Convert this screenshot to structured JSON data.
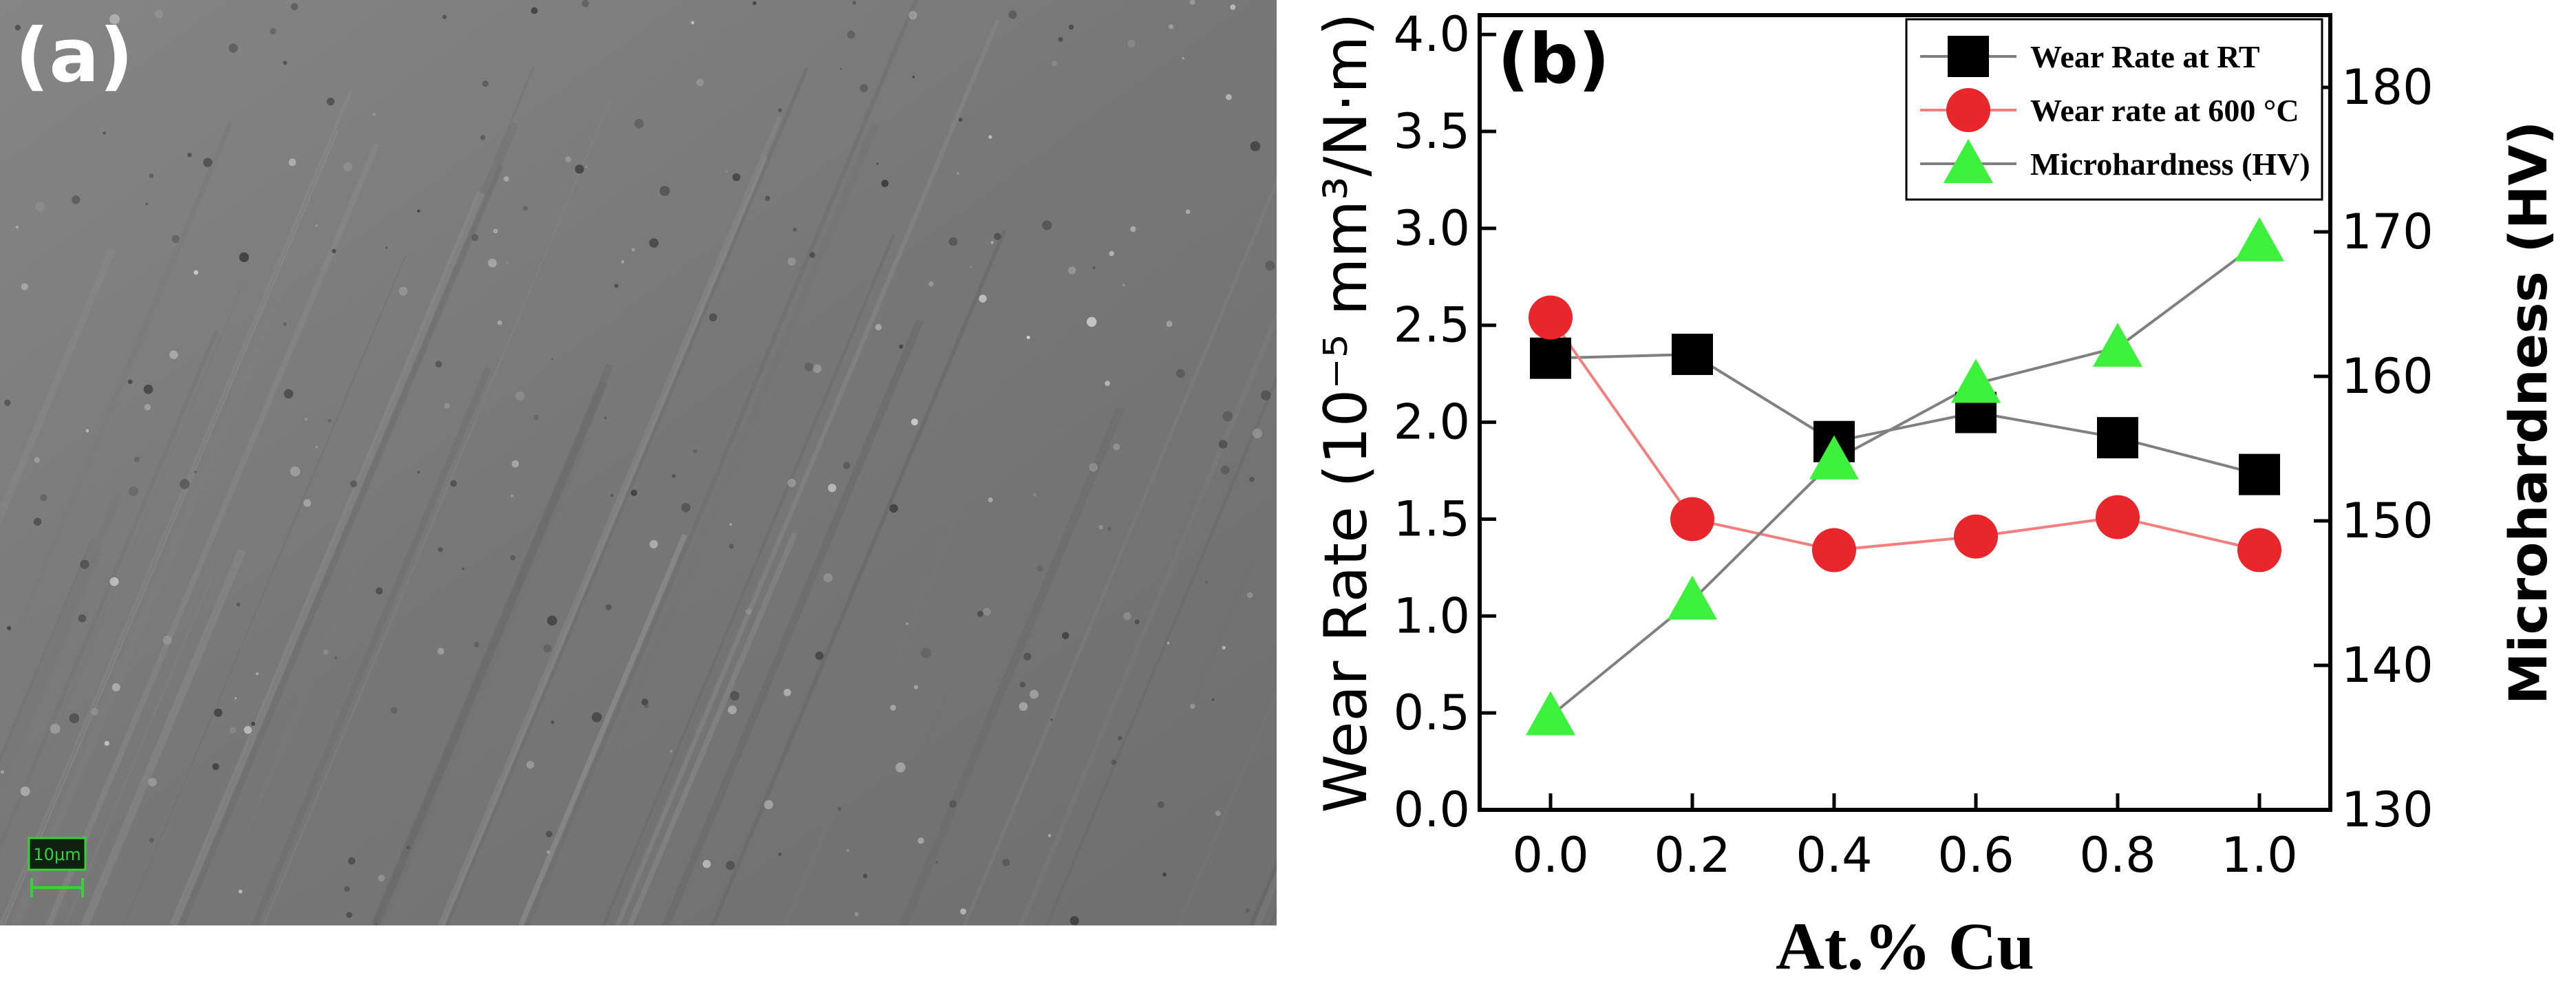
{
  "panel_a": {
    "label": "(a)",
    "scale_bar_text": "10μm"
  },
  "colors": {
    "series_rt": "#000000",
    "series_600": "#e8262b",
    "series_hv": "#3cf03c",
    "line_rt": "#808080",
    "line_600": "#f08080",
    "line_hv": "#808080",
    "sem_gray": "#7a7a7a",
    "scale_bar_green": "#39d139"
  },
  "chart_data": {
    "type": "scatter",
    "panel_label": "(b)",
    "xlabel": "At.% Cu",
    "ylabel": "Wear Rate (10⁻⁵ mm³/N·m)",
    "ylabel_right": "Microhardness (HV)",
    "x": [
      0.0,
      0.2,
      0.4,
      0.6,
      0.8,
      1.0
    ],
    "xlim": [
      -0.1,
      1.1
    ],
    "ylim": [
      0.0,
      4.1
    ],
    "ylim_right": [
      130,
      185
    ],
    "x_ticks": [
      "0.0",
      "0.2",
      "0.4",
      "0.6",
      "0.8",
      "1.0"
    ],
    "y_ticks": [
      "0.0",
      "0.5",
      "1.0",
      "1.5",
      "2.0",
      "2.5",
      "3.0",
      "3.5",
      "4.0"
    ],
    "y_ticks_right": [
      "130",
      "140",
      "150",
      "160",
      "170",
      "180"
    ],
    "legend_position": "top-right",
    "series": [
      {
        "name": "Wear Rate at RT",
        "marker": "square",
        "axis": "left",
        "values": [
          2.33,
          2.35,
          1.9,
          2.05,
          1.92,
          1.73
        ]
      },
      {
        "name": "Wear rate at 600 °C",
        "marker": "circle",
        "axis": "left",
        "values": [
          2.54,
          1.5,
          1.34,
          1.41,
          1.51,
          1.34
        ]
      },
      {
        "name": "Microhardness (HV)",
        "marker": "triangle",
        "axis": "right",
        "values": [
          136.5,
          144.5,
          154.2,
          159.5,
          162.0,
          169.3
        ]
      }
    ]
  }
}
